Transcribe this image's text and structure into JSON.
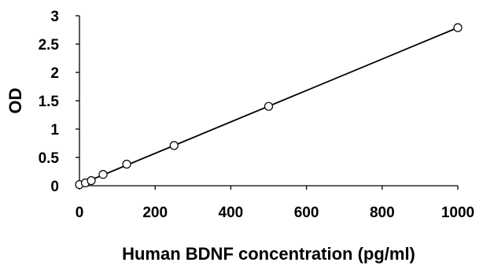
{
  "chart_data": {
    "type": "scatter",
    "xlabel": "Human BDNF concentration (pg/ml)",
    "ylabel": "OD",
    "xlim": [
      0,
      1000
    ],
    "ylim": [
      0,
      3
    ],
    "xticks": [
      0,
      200,
      400,
      600,
      800,
      1000
    ],
    "yticks": [
      0,
      0.5,
      1,
      1.5,
      2,
      2.5,
      3
    ],
    "xtick_labels": [
      "0",
      "200",
      "400",
      "600",
      "800",
      "1000"
    ],
    "ytick_labels": [
      "0",
      "0.5",
      "1",
      "1.5",
      "2",
      "2.5",
      "3"
    ],
    "grid": false,
    "legend": "none",
    "marker": "open-circle",
    "trendline": "linear",
    "series": [
      {
        "x": [
          0,
          15.6,
          31.25,
          62.5,
          125,
          250,
          500,
          1000
        ],
        "y": [
          0.02,
          0.05,
          0.09,
          0.2,
          0.38,
          0.71,
          1.4,
          2.79
        ]
      }
    ]
  }
}
